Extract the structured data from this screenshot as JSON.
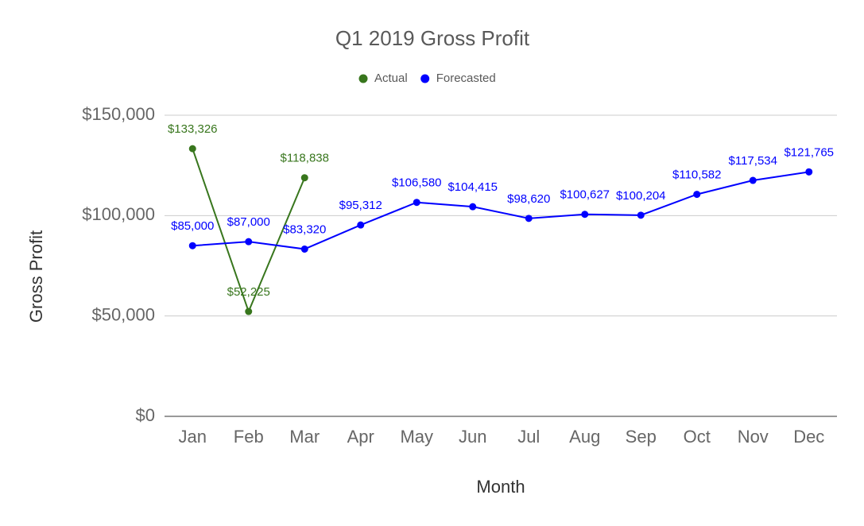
{
  "chart_data": {
    "type": "line",
    "title": "Q1 2019 Gross Profit",
    "xlabel": "Month",
    "ylabel": "Gross Profit",
    "categories": [
      "Jan",
      "Feb",
      "Mar",
      "Apr",
      "May",
      "Jun",
      "Jul",
      "Aug",
      "Sep",
      "Oct",
      "Nov",
      "Dec"
    ],
    "series": [
      {
        "name": "Actual",
        "color": "#38761d",
        "values": [
          133326,
          52225,
          118838,
          null,
          null,
          null,
          null,
          null,
          null,
          null,
          null,
          null
        ],
        "value_labels": [
          "$133,326",
          "$52,225",
          "$118,838",
          null,
          null,
          null,
          null,
          null,
          null,
          null,
          null,
          null
        ]
      },
      {
        "name": "Forecasted",
        "color": "#0000ff",
        "values": [
          85000,
          87000,
          83320,
          95312,
          106580,
          104415,
          98620,
          100627,
          100204,
          110582,
          117534,
          121765
        ],
        "value_labels": [
          "$85,000",
          "$87,000",
          "$83,320",
          "$95,312",
          "$106,580",
          "$104,415",
          "$98,620",
          "$100,627",
          "$100,204",
          "$110,582",
          "$117,534",
          "$121,765"
        ]
      }
    ],
    "ylim": [
      0,
      150000
    ],
    "yticks": [
      {
        "value": 0,
        "label": "$0"
      },
      {
        "value": 50000,
        "label": "$50,000"
      },
      {
        "value": 100000,
        "label": "$100,000"
      },
      {
        "value": 150000,
        "label": "$150,000"
      }
    ],
    "grid": true,
    "legend": "top"
  }
}
